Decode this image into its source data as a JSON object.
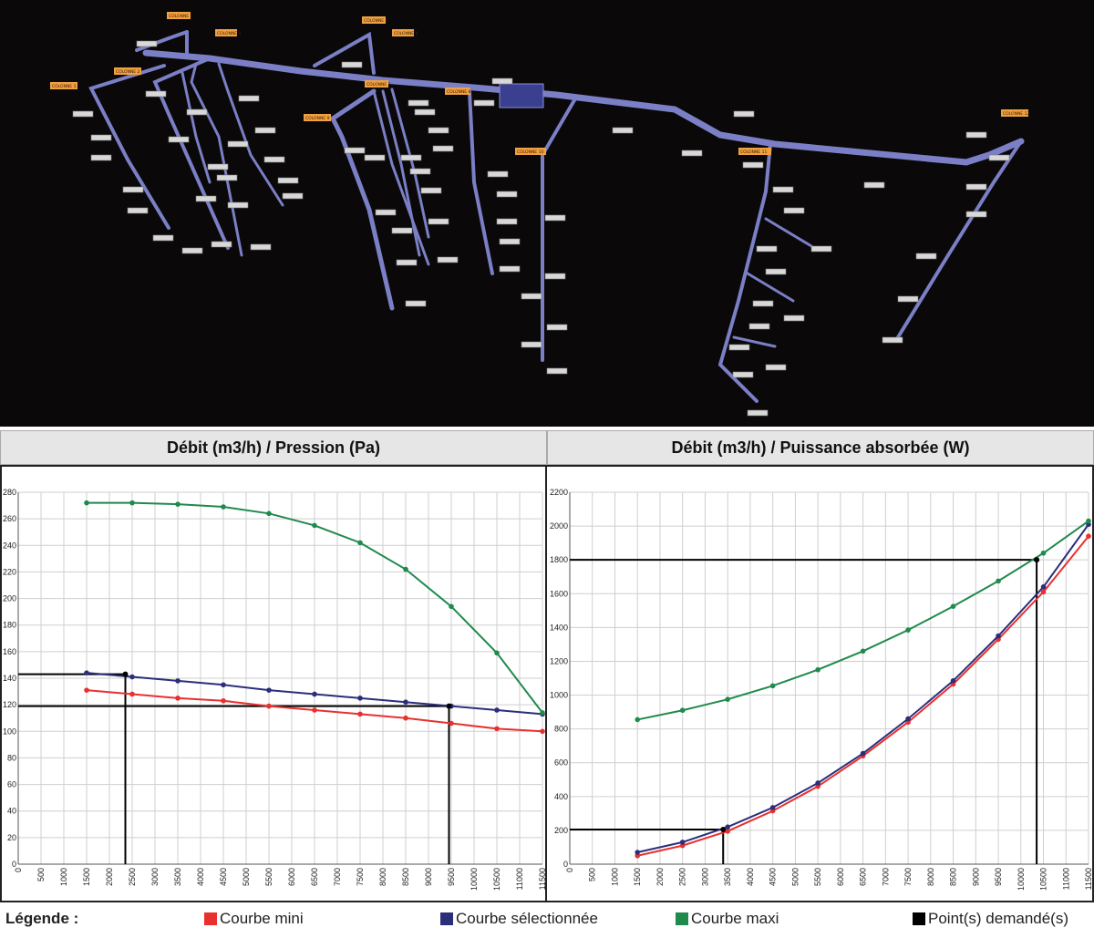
{
  "scene": {
    "orange_labels": [
      "COLONNE 1",
      "COLONNE 2",
      "COLONNE 3",
      "COLONNE 4",
      "COLONNE 5",
      "COLONNE 6",
      "COLONNE 7",
      "COLONNE 8",
      "COLONNE 9",
      "COLONNE 10",
      "COLONNE 11",
      "COLONNE 12"
    ]
  },
  "legend": {
    "title": "Légende :",
    "items": [
      {
        "label": "Courbe mini",
        "color": "#e8312f"
      },
      {
        "label": "Courbe sélectionnée",
        "color": "#2b2f7a"
      },
      {
        "label": "Courbe maxi",
        "color": "#1f8a4c"
      },
      {
        "label": "Point(s) demandé(s)",
        "color": "#000000"
      }
    ]
  },
  "chart_data": [
    {
      "type": "line",
      "title": "Débit (m3/h) / Pression (Pa)",
      "x_ticks": [
        0,
        500,
        1000,
        1500,
        2000,
        2500,
        3000,
        3500,
        4000,
        4500,
        5000,
        5500,
        6000,
        6500,
        7000,
        7500,
        8000,
        8500,
        9000,
        9500,
        10000,
        10500,
        11000,
        11500
      ],
      "y_ticks": [
        0,
        20,
        40,
        60,
        80,
        100,
        120,
        140,
        160,
        180,
        200,
        220,
        240,
        260,
        280
      ],
      "xlim": [
        0,
        11500
      ],
      "ylim": [
        0,
        280
      ],
      "grid": true,
      "series": [
        {
          "key": "mini",
          "color": "#e8312f",
          "x": [
            1500,
            2500,
            3500,
            4500,
            5500,
            6500,
            7500,
            8500,
            9500,
            10500,
            11500
          ],
          "y": [
            131,
            128,
            125,
            123,
            119,
            116,
            113,
            110,
            106,
            102,
            100
          ]
        },
        {
          "key": "selected",
          "color": "#2b2f7a",
          "x": [
            1500,
            2500,
            3500,
            4500,
            5500,
            6500,
            7500,
            8500,
            9500,
            10500,
            11500
          ],
          "y": [
            144,
            141,
            138,
            135,
            131,
            128,
            125,
            122,
            119,
            116,
            113
          ]
        },
        {
          "key": "maxi",
          "color": "#1f8a4c",
          "x": [
            1500,
            2500,
            3500,
            4500,
            5500,
            6500,
            7500,
            8500,
            9500,
            10500,
            11500
          ],
          "y": [
            272,
            272,
            271,
            269,
            264,
            255,
            242,
            222,
            194,
            159,
            114
          ]
        }
      ],
      "requested_points": [
        {
          "x": 2350,
          "y": 143
        },
        {
          "x": 9450,
          "y": 119
        }
      ]
    },
    {
      "type": "line",
      "title": "Débit (m3/h) / Puissance absorbée (W)",
      "x_ticks": [
        0,
        500,
        1000,
        1500,
        2000,
        2500,
        3000,
        3500,
        4000,
        4500,
        5000,
        5500,
        6000,
        6500,
        7000,
        7500,
        8000,
        8500,
        9000,
        9500,
        10000,
        10500,
        11000,
        11500
      ],
      "y_ticks": [
        0,
        200,
        400,
        600,
        800,
        1000,
        1200,
        1400,
        1600,
        1800,
        2000,
        2200
      ],
      "xlim": [
        0,
        11500
      ],
      "ylim": [
        0,
        2200
      ],
      "grid": true,
      "series": [
        {
          "key": "mini",
          "color": "#e8312f",
          "x": [
            1500,
            2500,
            3500,
            4500,
            5500,
            6500,
            7500,
            8500,
            9500,
            10500,
            11500
          ],
          "y": [
            50,
            110,
            195,
            315,
            460,
            640,
            840,
            1065,
            1330,
            1610,
            1940
          ]
        },
        {
          "key": "selected",
          "color": "#2b2f7a",
          "x": [
            1500,
            2500,
            3500,
            4500,
            5500,
            6500,
            7500,
            8500,
            9500,
            10500,
            11500
          ],
          "y": [
            70,
            130,
            220,
            335,
            480,
            655,
            860,
            1085,
            1350,
            1640,
            2010
          ]
        },
        {
          "key": "maxi",
          "color": "#1f8a4c",
          "x": [
            1500,
            2500,
            3500,
            4500,
            5500,
            6500,
            7500,
            8500,
            9500,
            10500,
            11500
          ],
          "y": [
            855,
            910,
            975,
            1055,
            1150,
            1260,
            1385,
            1525,
            1675,
            1840,
            2030
          ]
        }
      ],
      "requested_points": [
        {
          "x": 3400,
          "y": 205
        },
        {
          "x": 10350,
          "y": 1800
        }
      ]
    }
  ]
}
